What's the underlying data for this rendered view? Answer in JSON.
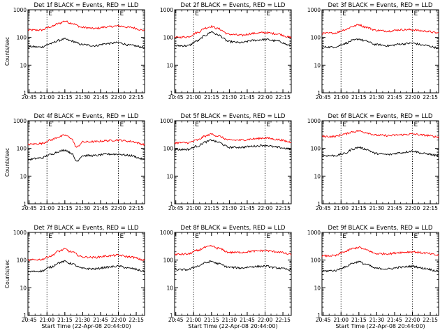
{
  "figure": {
    "background": "#ffffff"
  },
  "style": {
    "events_color": "#000000",
    "lld_color": "#ff0000",
    "axis_color": "#000000"
  },
  "chart_data": [
    {
      "type": "line",
      "panel": 1,
      "title": "Det 1f BLACK = Events, RED = LLD",
      "xlabel": "",
      "ylabel": "Counts/sec",
      "yscale": "log",
      "ylim": [
        1,
        1000
      ],
      "y_ticks": [
        "1",
        "10",
        "100",
        "1000"
      ],
      "x_ticks": [
        "20:45",
        "21:00",
        "21:15",
        "21:30",
        "21:45",
        "22:00",
        "22:15"
      ],
      "xlim": [
        "20:44",
        "22:22"
      ],
      "markers": [
        "21:00",
        "22:00"
      ],
      "marker_label": "E",
      "x": [
        "20:44",
        "20:55",
        "21:03",
        "21:10",
        "21:15",
        "21:20",
        "21:30",
        "21:40",
        "21:50",
        "22:00",
        "22:10",
        "22:22"
      ],
      "series": [
        {
          "name": "RED = LLD",
          "color": "#ff0000",
          "values": [
            185,
            185,
            240,
            320,
            390,
            330,
            230,
            210,
            240,
            260,
            230,
            180
          ]
        },
        {
          "name": "BLACK = Events",
          "color": "#000000",
          "values": [
            47,
            45,
            60,
            78,
            88,
            75,
            55,
            50,
            60,
            65,
            52,
            44
          ]
        }
      ]
    },
    {
      "type": "line",
      "panel": 2,
      "title": "Det 2f BLACK = Events, RED = LLD",
      "xlabel": "",
      "ylabel": "",
      "yscale": "log",
      "ylim": [
        1,
        1000
      ],
      "y_ticks": [
        "1",
        "10",
        "100",
        "1000"
      ],
      "x_ticks": [
        "20:45",
        "21:00",
        "21:15",
        "21:30",
        "21:45",
        "22:00",
        "22:15"
      ],
      "xlim": [
        "20:44",
        "22:22"
      ],
      "markers": [
        "21:00",
        "22:00"
      ],
      "marker_label": "E",
      "x": [
        "20:44",
        "20:55",
        "21:03",
        "21:10",
        "21:15",
        "21:20",
        "21:30",
        "21:40",
        "21:50",
        "22:00",
        "22:10",
        "22:22"
      ],
      "series": [
        {
          "name": "RED = LLD",
          "color": "#ff0000",
          "values": [
            100,
            105,
            150,
            220,
            250,
            210,
            130,
            120,
            140,
            150,
            135,
            100
          ]
        },
        {
          "name": "BLACK = Events",
          "color": "#000000",
          "values": [
            50,
            50,
            75,
            120,
            160,
            125,
            70,
            65,
            78,
            85,
            75,
            50
          ]
        }
      ]
    },
    {
      "type": "line",
      "panel": 3,
      "title": "Det 3f BLACK = Events, RED = LLD",
      "xlabel": "",
      "ylabel": "",
      "yscale": "log",
      "ylim": [
        1,
        1000
      ],
      "y_ticks": [
        "1",
        "10",
        "100",
        "1000"
      ],
      "x_ticks": [
        "20:45",
        "21:00",
        "21:15",
        "21:30",
        "21:45",
        "22:00",
        "22:15"
      ],
      "xlim": [
        "20:44",
        "22:22"
      ],
      "markers": [
        "21:00",
        "22:00"
      ],
      "marker_label": "E",
      "x": [
        "20:44",
        "20:55",
        "21:03",
        "21:10",
        "21:15",
        "21:20",
        "21:30",
        "21:40",
        "21:50",
        "22:00",
        "22:10",
        "22:22"
      ],
      "series": [
        {
          "name": "RED = LLD",
          "color": "#ff0000",
          "values": [
            140,
            145,
            190,
            250,
            290,
            240,
            180,
            170,
            190,
            190,
            170,
            145
          ]
        },
        {
          "name": "BLACK = Events",
          "color": "#000000",
          "values": [
            45,
            45,
            60,
            78,
            88,
            75,
            55,
            50,
            58,
            62,
            52,
            42
          ]
        }
      ]
    },
    {
      "type": "line",
      "panel": 4,
      "title": "Det 4f BLACK = Events, RED = LLD",
      "xlabel": "",
      "ylabel": "Counts/sec",
      "yscale": "log",
      "ylim": [
        1,
        1000
      ],
      "y_ticks": [
        "1",
        "10",
        "100",
        "1000"
      ],
      "x_ticks": [
        "20:45",
        "21:00",
        "21:15",
        "21:30",
        "21:45",
        "22:00",
        "22:15"
      ],
      "xlim": [
        "20:44",
        "22:22"
      ],
      "markers": [
        "21:00",
        "22:00"
      ],
      "marker_label": "E",
      "x": [
        "20:44",
        "20:55",
        "21:03",
        "21:10",
        "21:15",
        "21:20",
        "21:25",
        "21:30",
        "21:40",
        "21:50",
        "22:00",
        "22:10",
        "22:22"
      ],
      "series": [
        {
          "name": "RED = LLD",
          "color": "#ff0000",
          "values": [
            140,
            150,
            200,
            260,
            300,
            240,
            110,
            170,
            175,
            190,
            200,
            180,
            140
          ]
        },
        {
          "name": "BLACK = Events",
          "color": "#000000",
          "values": [
            40,
            45,
            60,
            78,
            88,
            70,
            35,
            55,
            55,
            62,
            62,
            55,
            40
          ]
        }
      ]
    },
    {
      "type": "line",
      "panel": 5,
      "title": "Det 5f BLACK = Events, RED = LLD",
      "xlabel": "",
      "ylabel": "",
      "yscale": "log",
      "ylim": [
        1,
        1000
      ],
      "y_ticks": [
        "1",
        "10",
        "100",
        "1000"
      ],
      "x_ticks": [
        "20:45",
        "21:00",
        "21:15",
        "21:30",
        "21:45",
        "22:00",
        "22:15"
      ],
      "xlim": [
        "20:44",
        "22:22"
      ],
      "markers": [
        "21:00",
        "22:00"
      ],
      "marker_label": "E",
      "x": [
        "20:44",
        "20:55",
        "21:03",
        "21:10",
        "21:15",
        "21:20",
        "21:30",
        "21:40",
        "21:50",
        "22:00",
        "22:10",
        "22:22"
      ],
      "series": [
        {
          "name": "RED = LLD",
          "color": "#ff0000",
          "values": [
            160,
            160,
            200,
            280,
            330,
            280,
            200,
            200,
            220,
            240,
            210,
            170
          ]
        },
        {
          "name": "BLACK = Events",
          "color": "#000000",
          "values": [
            90,
            92,
            120,
            170,
            200,
            170,
            110,
            110,
            120,
            130,
            110,
            95
          ]
        }
      ]
    },
    {
      "type": "line",
      "panel": 6,
      "title": "Det 6f BLACK = Events, RED = LLD",
      "xlabel": "",
      "ylabel": "",
      "yscale": "log",
      "ylim": [
        1,
        1000
      ],
      "y_ticks": [
        "1",
        "10",
        "100",
        "1000"
      ],
      "x_ticks": [
        "20:45",
        "21:00",
        "21:15",
        "21:30",
        "21:45",
        "22:00",
        "22:15"
      ],
      "xlim": [
        "20:44",
        "22:22"
      ],
      "markers": [
        "21:00",
        "22:00"
      ],
      "marker_label": "E",
      "x": [
        "20:44",
        "20:55",
        "21:03",
        "21:10",
        "21:15",
        "21:20",
        "21:30",
        "21:40",
        "21:50",
        "22:00",
        "22:10",
        "22:22"
      ],
      "series": [
        {
          "name": "RED = LLD",
          "color": "#ff0000",
          "values": [
            270,
            270,
            330,
            400,
            430,
            380,
            300,
            290,
            310,
            330,
            300,
            260
          ]
        },
        {
          "name": "BLACK = Events",
          "color": "#000000",
          "values": [
            55,
            55,
            65,
            95,
            110,
            95,
            65,
            60,
            70,
            80,
            65,
            55
          ]
        }
      ]
    },
    {
      "type": "line",
      "panel": 7,
      "title": "Det 7f BLACK = Events, RED = LLD",
      "xlabel": "Start Time (22-Apr-08 20:44:00)",
      "ylabel": "Counts/sec",
      "yscale": "log",
      "ylim": [
        1,
        1000
      ],
      "y_ticks": [
        "1",
        "10",
        "100",
        "1000"
      ],
      "x_ticks": [
        "20:45",
        "21:00",
        "21:15",
        "21:30",
        "21:45",
        "22:00",
        "22:15"
      ],
      "xlim": [
        "20:44",
        "22:22"
      ],
      "markers": [
        "21:00",
        "22:00"
      ],
      "marker_label": "E",
      "x": [
        "20:44",
        "20:55",
        "21:03",
        "21:10",
        "21:15",
        "21:20",
        "21:30",
        "21:40",
        "21:50",
        "22:00",
        "22:10",
        "22:22"
      ],
      "series": [
        {
          "name": "RED = LLD",
          "color": "#ff0000",
          "values": [
            100,
            105,
            140,
            210,
            250,
            200,
            130,
            125,
            140,
            150,
            130,
            100
          ]
        },
        {
          "name": "BLACK = Events",
          "color": "#000000",
          "values": [
            38,
            40,
            55,
            80,
            90,
            75,
            50,
            48,
            55,
            60,
            50,
            40
          ]
        }
      ]
    },
    {
      "type": "line",
      "panel": 8,
      "title": "Det 8f BLACK = Events, RED = LLD",
      "xlabel": "Start Time (22-Apr-08 20:44:00)",
      "ylabel": "",
      "yscale": "log",
      "ylim": [
        1,
        1000
      ],
      "y_ticks": [
        "1",
        "10",
        "100",
        "1000"
      ],
      "x_ticks": [
        "20:45",
        "21:00",
        "21:15",
        "21:30",
        "21:45",
        "22:00",
        "22:15"
      ],
      "xlim": [
        "20:44",
        "22:22"
      ],
      "markers": [
        "21:00",
        "22:00"
      ],
      "marker_label": "E",
      "x": [
        "20:44",
        "20:55",
        "21:03",
        "21:10",
        "21:15",
        "21:20",
        "21:30",
        "21:40",
        "21:50",
        "22:00",
        "22:10",
        "22:22"
      ],
      "series": [
        {
          "name": "RED = LLD",
          "color": "#ff0000",
          "values": [
            160,
            165,
            220,
            290,
            320,
            270,
            190,
            190,
            210,
            220,
            200,
            160
          ]
        },
        {
          "name": "BLACK = Events",
          "color": "#000000",
          "values": [
            45,
            45,
            60,
            80,
            90,
            75,
            55,
            52,
            58,
            60,
            52,
            45
          ]
        }
      ]
    },
    {
      "type": "line",
      "panel": 9,
      "title": "Det 9f BLACK = Events, RED = LLD",
      "xlabel": "Start Time (22-Apr-08 20:44:00)",
      "ylabel": "",
      "yscale": "log",
      "ylim": [
        1,
        1000
      ],
      "y_ticks": [
        "1",
        "10",
        "100",
        "1000"
      ],
      "x_ticks": [
        "20:45",
        "21:00",
        "21:15",
        "21:30",
        "21:45",
        "22:00",
        "22:15"
      ],
      "xlim": [
        "20:44",
        "22:22"
      ],
      "markers": [
        "21:00",
        "22:00"
      ],
      "marker_label": "E",
      "x": [
        "20:44",
        "20:55",
        "21:03",
        "21:10",
        "21:15",
        "21:20",
        "21:30",
        "21:40",
        "21:50",
        "22:00",
        "22:10",
        "22:22"
      ],
      "series": [
        {
          "name": "RED = LLD",
          "color": "#ff0000",
          "values": [
            140,
            145,
            200,
            260,
            290,
            240,
            170,
            170,
            190,
            200,
            180,
            150
          ]
        },
        {
          "name": "BLACK = Events",
          "color": "#000000",
          "values": [
            40,
            42,
            55,
            78,
            88,
            72,
            50,
            48,
            55,
            60,
            50,
            40
          ]
        }
      ]
    }
  ]
}
